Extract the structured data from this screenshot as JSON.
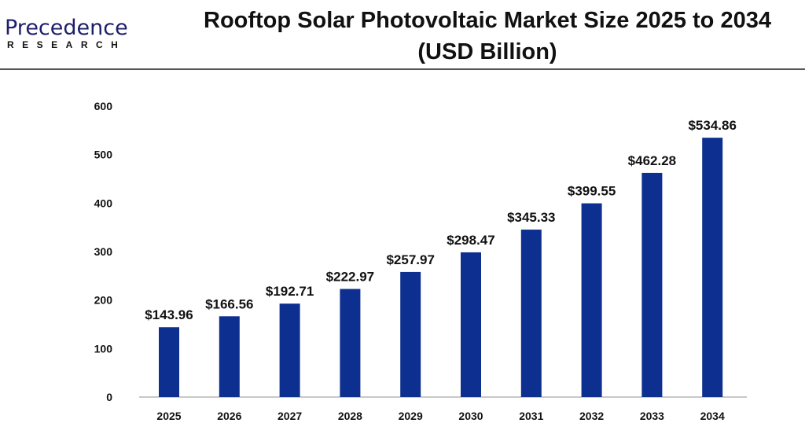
{
  "logo": {
    "main": "Precedence",
    "sub": "RESEARCH"
  },
  "chart_data": {
    "type": "bar",
    "title": "Rooftop Solar Photovoltaic Market Size 2025 to 2034",
    "subtitle": "(USD Billion)",
    "categories": [
      "2025",
      "2026",
      "2027",
      "2028",
      "2029",
      "2030",
      "2031",
      "2032",
      "2033",
      "2034"
    ],
    "values": [
      143.96,
      166.56,
      192.71,
      222.97,
      257.97,
      298.47,
      345.33,
      399.55,
      462.28,
      534.86
    ],
    "data_labels": [
      "$143.96",
      "$166.56",
      "$192.71",
      "$222.97",
      "$257.97",
      "$298.47",
      "$345.33",
      "$399.55",
      "$462.28",
      "$534.86"
    ],
    "yticks": [
      "0",
      "100",
      "200",
      "300",
      "400",
      "500",
      "600"
    ],
    "ylim": [
      0,
      600
    ],
    "xlabel": "",
    "ylabel": "",
    "grid": false,
    "bar_color": "#0d2f8f"
  }
}
